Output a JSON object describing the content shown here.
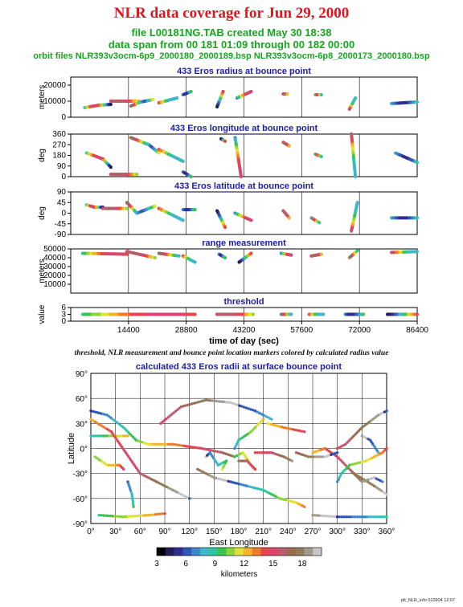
{
  "header": {
    "title": "NLR data coverage for Jun 29, 2000",
    "line1": "file L00181NG.TAB created May 30 18:38",
    "line2": "data span from 00 181 01:09 through 00 182 00:00",
    "line3": "orbit files NLR393v3ocm-6p9_2000180_2000189.bsp NLR393v3ocm-6p8_2000173_2000180.bsp"
  },
  "caption": "threshold, NLR measurement and bounce point location markers colored by calculated radius value",
  "footer": "plt_NLR_info 010904 12:07",
  "colors": {
    "title": "#e0141e",
    "subtitle": "#17a51e",
    "panel_title": "#1c1ca8",
    "frame": "#000000"
  },
  "chart_data": [
    {
      "type": "scatter",
      "title": "433 Eros radius at bounce point",
      "ylabel": "meters",
      "xlim": [
        0,
        86400
      ],
      "ylim": [
        0,
        25000
      ],
      "yticks": [
        0,
        10000,
        20000
      ],
      "tracks": [
        {
          "x": [
            3500,
            7000,
            10000
          ],
          "y": [
            6000,
            7500,
            8000
          ]
        },
        {
          "x": [
            10000,
            17000
          ],
          "y": [
            10000,
            10000
          ]
        },
        {
          "x": [
            15000,
            17500,
            20500
          ],
          "y": [
            7000,
            9500,
            11000
          ]
        },
        {
          "x": [
            22000,
            26500
          ],
          "y": [
            9000,
            12000
          ]
        },
        {
          "x": [
            28000,
            30000
          ],
          "y": [
            14000,
            16000
          ]
        },
        {
          "x": [
            36500,
            38000
          ],
          "y": [
            6500,
            16000
          ]
        },
        {
          "x": [
            41500,
            45000
          ],
          "y": [
            12000,
            16000
          ]
        },
        {
          "x": [
            53000,
            54000
          ],
          "y": [
            14500,
            14500
          ]
        },
        {
          "x": [
            61000,
            62500
          ],
          "y": [
            14000,
            14000
          ]
        },
        {
          "x": [
            69500,
            71000
          ],
          "y": [
            5000,
            12000
          ]
        },
        {
          "x": [
            80000,
            86400
          ],
          "y": [
            8500,
            9500
          ]
        }
      ]
    },
    {
      "type": "scatter",
      "title": "433 Eros longitude at bounce point",
      "ylabel": "deg",
      "xlim": [
        0,
        86400
      ],
      "ylim": [
        0,
        360
      ],
      "yticks": [
        0,
        90,
        180,
        270,
        360
      ],
      "tracks": [
        {
          "x": [
            4000,
            8000,
            10000
          ],
          "y": [
            200,
            150,
            80
          ]
        },
        {
          "x": [
            10000,
            16500
          ],
          "y": [
            20,
            20
          ]
        },
        {
          "x": [
            15000,
            19500,
            22000
          ],
          "y": [
            330,
            270,
            200
          ]
        },
        {
          "x": [
            22000,
            28000
          ],
          "y": [
            230,
            130
          ]
        },
        {
          "x": [
            28000,
            30000
          ],
          "y": [
            40,
            0
          ]
        },
        {
          "x": [
            37500,
            38500
          ],
          "y": [
            320,
            300
          ]
        },
        {
          "x": [
            41000,
            42500
          ],
          "y": [
            330,
            0
          ]
        },
        {
          "x": [
            53000,
            54500
          ],
          "y": [
            290,
            260
          ]
        },
        {
          "x": [
            61000,
            62500
          ],
          "y": [
            190,
            170
          ]
        },
        {
          "x": [
            70000,
            71000
          ],
          "y": [
            360,
            0
          ]
        },
        {
          "x": [
            81000,
            86400
          ],
          "y": [
            200,
            120
          ]
        }
      ]
    },
    {
      "type": "scatter",
      "title": "433 Eros latitude at bounce point",
      "ylabel": "deg",
      "xlim": [
        0,
        86400
      ],
      "ylim": [
        -90,
        90
      ],
      "yticks": [
        -90,
        -45,
        0,
        45,
        90
      ],
      "tracks": [
        {
          "x": [
            4000,
            6000,
            8000
          ],
          "y": [
            35,
            25,
            25
          ]
        },
        {
          "x": [
            8000,
            14000
          ],
          "y": [
            20,
            20
          ]
        },
        {
          "x": [
            14000,
            16500,
            21000
          ],
          "y": [
            45,
            0,
            30
          ]
        },
        {
          "x": [
            22000,
            28000
          ],
          "y": [
            20,
            -30
          ]
        },
        {
          "x": [
            28000,
            31000
          ],
          "y": [
            15,
            15
          ]
        },
        {
          "x": [
            36500,
            38500
          ],
          "y": [
            10,
            -60
          ]
        },
        {
          "x": [
            41000,
            45000
          ],
          "y": [
            0,
            -30
          ]
        },
        {
          "x": [
            53000,
            54500
          ],
          "y": [
            10,
            -20
          ]
        },
        {
          "x": [
            60000,
            62000
          ],
          "y": [
            -20,
            -40
          ]
        },
        {
          "x": [
            70000,
            71500
          ],
          "y": [
            -75,
            45
          ]
        },
        {
          "x": [
            80000,
            86400
          ],
          "y": [
            -20,
            -20
          ]
        }
      ]
    },
    {
      "type": "scatter",
      "title": "range measurement",
      "ylabel": "meters",
      "xlim": [
        0,
        86400
      ],
      "ylim": [
        0,
        50000
      ],
      "yticks": [
        10000,
        20000,
        30000,
        40000,
        50000
      ],
      "tracks": [
        {
          "x": [
            3000,
            14000
          ],
          "y": [
            45000,
            44000
          ]
        },
        {
          "x": [
            14000,
            21000
          ],
          "y": [
            47000,
            40000
          ]
        },
        {
          "x": [
            22000,
            27000
          ],
          "y": [
            45000,
            42000
          ]
        },
        {
          "x": [
            28000,
            31000
          ],
          "y": [
            42000,
            35000
          ]
        },
        {
          "x": [
            37000,
            38500
          ],
          "y": [
            44000,
            40000
          ]
        },
        {
          "x": [
            42000,
            45000
          ],
          "y": [
            35000,
            45000
          ]
        },
        {
          "x": [
            52500,
            55000
          ],
          "y": [
            45000,
            43000
          ]
        },
        {
          "x": [
            60000,
            62500
          ],
          "y": [
            42000,
            44000
          ]
        },
        {
          "x": [
            69500,
            71500
          ],
          "y": [
            40000,
            48000
          ]
        },
        {
          "x": [
            80000,
            86400
          ],
          "y": [
            46000,
            47000
          ]
        }
      ]
    },
    {
      "type": "scatter",
      "title": "threshold",
      "ylabel": "value",
      "xlabel": "time of day (sec)",
      "xlim": [
        0,
        86400
      ],
      "ylim": [
        0,
        6
      ],
      "yticks": [
        0,
        3,
        6
      ],
      "xticks": [
        14400,
        28800,
        43200,
        57600,
        72000,
        86400
      ],
      "tracks": [
        {
          "x": [
            3000,
            31000
          ],
          "y": [
            3,
            3
          ]
        },
        {
          "x": [
            36500,
            45500
          ],
          "y": [
            3,
            3
          ]
        },
        {
          "x": [
            52500,
            55000
          ],
          "y": [
            3,
            3
          ]
        },
        {
          "x": [
            59500,
            63000
          ],
          "y": [
            3,
            3
          ]
        },
        {
          "x": [
            68500,
            73000
          ],
          "y": [
            3,
            3
          ]
        },
        {
          "x": [
            79000,
            86400
          ],
          "y": [
            3,
            3
          ]
        }
      ]
    },
    {
      "type": "scatter",
      "title": "calculated 433 Eros radii at surface bounce point",
      "xlabel": "East Longitude",
      "ylabel": "Latitude",
      "xlim": [
        0,
        360
      ],
      "ylim": [
        -90,
        90
      ],
      "xticks": [
        0,
        30,
        60,
        90,
        120,
        150,
        180,
        210,
        240,
        270,
        300,
        330,
        360
      ],
      "yticks": [
        -90,
        -60,
        -30,
        0,
        30,
        60,
        90
      ],
      "tracks": [
        {
          "x": [
            0,
            20,
            40,
            55,
            70,
            100,
            135,
            160,
            175
          ],
          "y": [
            45,
            40,
            25,
            10,
            5,
            5,
            0,
            -5,
            -10
          ]
        },
        {
          "x": [
            0,
            15,
            30,
            45
          ],
          "y": [
            15,
            15,
            15,
            15
          ]
        },
        {
          "x": [
            5,
            20,
            35,
            40
          ],
          "y": [
            -10,
            -20,
            -20,
            -25
          ]
        },
        {
          "x": [
            0,
            25,
            60,
            80,
            100,
            120
          ],
          "y": [
            35,
            20,
            -30,
            -40,
            -50,
            -60
          ]
        },
        {
          "x": [
            85,
            110,
            140,
            170,
            200,
            220
          ],
          "y": [
            30,
            50,
            58,
            55,
            45,
            35
          ]
        },
        {
          "x": [
            130,
            150,
            170,
            190,
            210,
            230,
            250,
            260
          ],
          "y": [
            -25,
            -35,
            -40,
            -45,
            -50,
            -60,
            -65,
            -70
          ]
        },
        {
          "x": [
            140,
            145,
            155,
            165,
            160
          ],
          "y": [
            -10,
            -5,
            -20,
            -15,
            -25
          ]
        },
        {
          "x": [
            175,
            180,
            195,
            210
          ],
          "y": [
            0,
            10,
            20,
            35
          ]
        },
        {
          "x": [
            175,
            185,
            195,
            200,
            190,
            180
          ],
          "y": [
            -10,
            -5,
            -20,
            -25,
            -15,
            -15
          ]
        },
        {
          "x": [
            270,
            285,
            300,
            320,
            345,
            360
          ],
          "y": [
            -5,
            0,
            -10,
            -30,
            -45,
            -55
          ]
        },
        {
          "x": [
            300,
            310,
            330,
            350,
            360
          ],
          "y": [
            0,
            5,
            25,
            40,
            45
          ]
        },
        {
          "x": [
            320,
            330,
            345,
            355
          ],
          "y": [
            -30,
            -40,
            -35,
            -40
          ]
        },
        {
          "x": [
            330,
            340,
            350
          ],
          "y": [
            15,
            10,
            -5
          ]
        },
        {
          "x": [
            300,
            305,
            315,
            335,
            355,
            360
          ],
          "y": [
            -40,
            -30,
            -20,
            -15,
            -5,
            0
          ]
        },
        {
          "x": [
            10,
            40,
            70,
            90
          ],
          "y": [
            -80,
            -82,
            -80,
            -78
          ]
        },
        {
          "x": [
            215,
            235,
            260
          ],
          "y": [
            30,
            25,
            20
          ]
        },
        {
          "x": [
            200,
            220,
            235,
            245
          ],
          "y": [
            -5,
            -5,
            -10,
            -15
          ]
        },
        {
          "x": [
            250,
            265,
            285,
            300
          ],
          "y": [
            -5,
            -10,
            -10,
            -5
          ]
        },
        {
          "x": [
            270,
            300,
            330,
            360
          ],
          "y": [
            -80,
            -82,
            -82,
            -82
          ]
        },
        {
          "x": [
            45,
            50,
            52
          ],
          "y": [
            -40,
            -55,
            -70
          ]
        }
      ]
    }
  ],
  "colorbar": {
    "label": "kilometers",
    "ticks": [
      3,
      6,
      9,
      12,
      15,
      18
    ],
    "range": [
      3,
      20
    ],
    "stops": [
      "#000000",
      "#221e57",
      "#2e2f8e",
      "#2f57b6",
      "#3d87c9",
      "#3fb6c9",
      "#2fc7a0",
      "#39c24f",
      "#8cd43b",
      "#e1e235",
      "#f2b42b",
      "#ef7b2d",
      "#e3474b",
      "#d6466f",
      "#b85d6b",
      "#9b6a4e",
      "#8f7c58",
      "#a09a8d",
      "#c6c6c6"
    ]
  }
}
